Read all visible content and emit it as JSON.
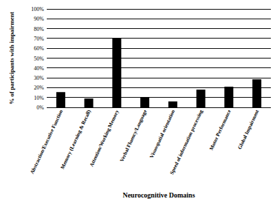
{
  "chart_data": {
    "type": "bar",
    "x_label": "Neurocognitive Domains",
    "y_label": "% of participants with impairment",
    "categories": [
      "Abstraction/Executive Function",
      "Memory (Learning & Recall)",
      "Attention/Working Memory",
      "Verbal Fluency/Language",
      "Visuospatial orientation",
      "Speed of information processing",
      "Motor Performance",
      "Global Impairment"
    ],
    "values": [
      15.5,
      9,
      70,
      10.5,
      6,
      18,
      21,
      28.5
    ],
    "color": "#000000",
    "ylim": [
      0,
      100
    ],
    "yticks": [
      {
        "value": 0,
        "label": "0%"
      },
      {
        "value": 10,
        "label": "10%"
      },
      {
        "value": 20,
        "label": "20%"
      },
      {
        "value": 30,
        "label": "30%"
      },
      {
        "value": 40,
        "label": "40%"
      },
      {
        "value": 50,
        "label": "50%"
      },
      {
        "value": 60,
        "label": "60%"
      },
      {
        "value": 70,
        "label": "70%"
      },
      {
        "value": 80,
        "label": "80%"
      },
      {
        "value": 90,
        "label": "90%"
      },
      {
        "value": 100,
        "label": "100%"
      }
    ],
    "grid": true
  }
}
